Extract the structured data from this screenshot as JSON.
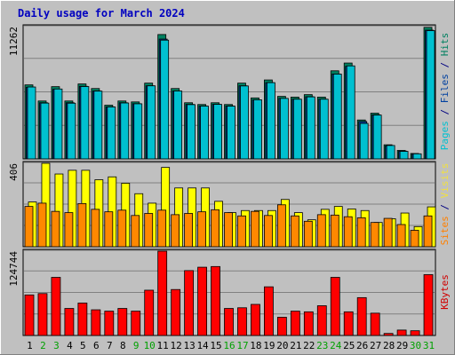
{
  "chart_data": {
    "type": "bar",
    "title": "Daily usage for March 2024",
    "categories": [
      "1",
      "2",
      "3",
      "4",
      "5",
      "6",
      "7",
      "8",
      "9",
      "10",
      "11",
      "12",
      "13",
      "14",
      "15",
      "16",
      "17",
      "18",
      "19",
      "20",
      "21",
      "22",
      "23",
      "24",
      "25",
      "26",
      "27",
      "28",
      "29",
      "30",
      "31"
    ],
    "weekend_days": [
      "2",
      "3",
      "9",
      "10",
      "16",
      "17",
      "23",
      "24",
      "30",
      "31"
    ],
    "panels": [
      {
        "id": "hits",
        "max_label": "11262",
        "ymax": 11262,
        "label_parts": [
          {
            "text": "Pages",
            "color": "#00c0d0"
          },
          {
            "text": " / ",
            "color": "#000080"
          },
          {
            "text": "Files",
            "color": "#0040a0"
          },
          {
            "text": " / ",
            "color": "#000080"
          },
          {
            "text": "Hits",
            "color": "#008060"
          }
        ],
        "series": [
          {
            "name": "Hits",
            "color": "#008060",
            "values": [
              6300,
              4930,
              6150,
              4930,
              6380,
              5990,
              4570,
              4930,
              4850,
              6450,
              10590,
              5990,
              4780,
              4630,
              4780,
              4630,
              6450,
              5190,
              6720,
              5320,
              5260,
              5470,
              5260,
              7500,
              8160,
              3310,
              3890,
              1200,
              720,
              460,
              11200
            ]
          },
          {
            "name": "Files",
            "color": "#0040a0",
            "values": [
              6100,
              4780,
              5920,
              4780,
              6180,
              5780,
              4430,
              4780,
              4700,
              6220,
              10200,
              5780,
              4640,
              4490,
              4640,
              4500,
              6220,
              5010,
              6490,
              5150,
              5080,
              5290,
              5080,
              7230,
              7880,
              3180,
              3750,
              1100,
              660,
              420,
              10960
            ]
          },
          {
            "name": "Pages",
            "color": "#00c0d0",
            "values": [
              6120,
              4750,
              5950,
              4740,
              6160,
              5770,
              4420,
              4760,
              4690,
              6220,
              10110,
              5780,
              4620,
              4490,
              4640,
              4490,
              6210,
              5030,
              6490,
              5150,
              5080,
              5280,
              5080,
              7220,
              7920,
              3020,
              3730,
              1140,
              640,
              430,
              10920
            ]
          }
        ]
      },
      {
        "id": "visits",
        "max_label": "406",
        "ymax": 406,
        "label_parts": [
          {
            "text": "Sites",
            "color": "#ff8000"
          },
          {
            "text": " / ",
            "color": "#000080"
          },
          {
            "text": "Visits",
            "color": "#f0e040"
          }
        ],
        "series": [
          {
            "name": "Visits",
            "color": "#ffff00",
            "values": [
              218,
              406,
              354,
              372,
              372,
              326,
              340,
              309,
              258,
              212,
              386,
              286,
              286,
              286,
              221,
              166,
              176,
              176,
              176,
              230,
              166,
              131,
              182,
              196,
              184,
              176,
              118,
              136,
              164,
              98,
              194
            ]
          },
          {
            "name": "Sites",
            "color": "#ff8800",
            "values": [
              196,
              212,
              172,
              166,
              210,
              182,
              170,
              178,
              152,
              162,
              178,
              156,
              162,
              170,
              180,
              166,
              150,
              172,
              152,
              204,
              150,
              124,
              156,
              154,
              146,
              141,
              118,
              138,
              108,
              80,
              150
            ]
          }
        ]
      },
      {
        "id": "kbytes",
        "max_label": "124744",
        "ymax": 124744,
        "label_parts": [
          {
            "text": "KBytes",
            "color": "#d00000"
          }
        ],
        "series": [
          {
            "name": "KBytes",
            "color": "#ff0000",
            "values": [
              60000,
              62000,
              86000,
              40000,
              48000,
              38000,
              36000,
              40000,
              36000,
              67000,
              124744,
              68000,
              96000,
              101000,
              102000,
              40000,
              41000,
              46000,
              72000,
              27000,
              36000,
              35000,
              44000,
              86000,
              35000,
              56000,
              33000,
              3000,
              8000,
              7000,
              90000
            ]
          }
        ]
      }
    ]
  }
}
